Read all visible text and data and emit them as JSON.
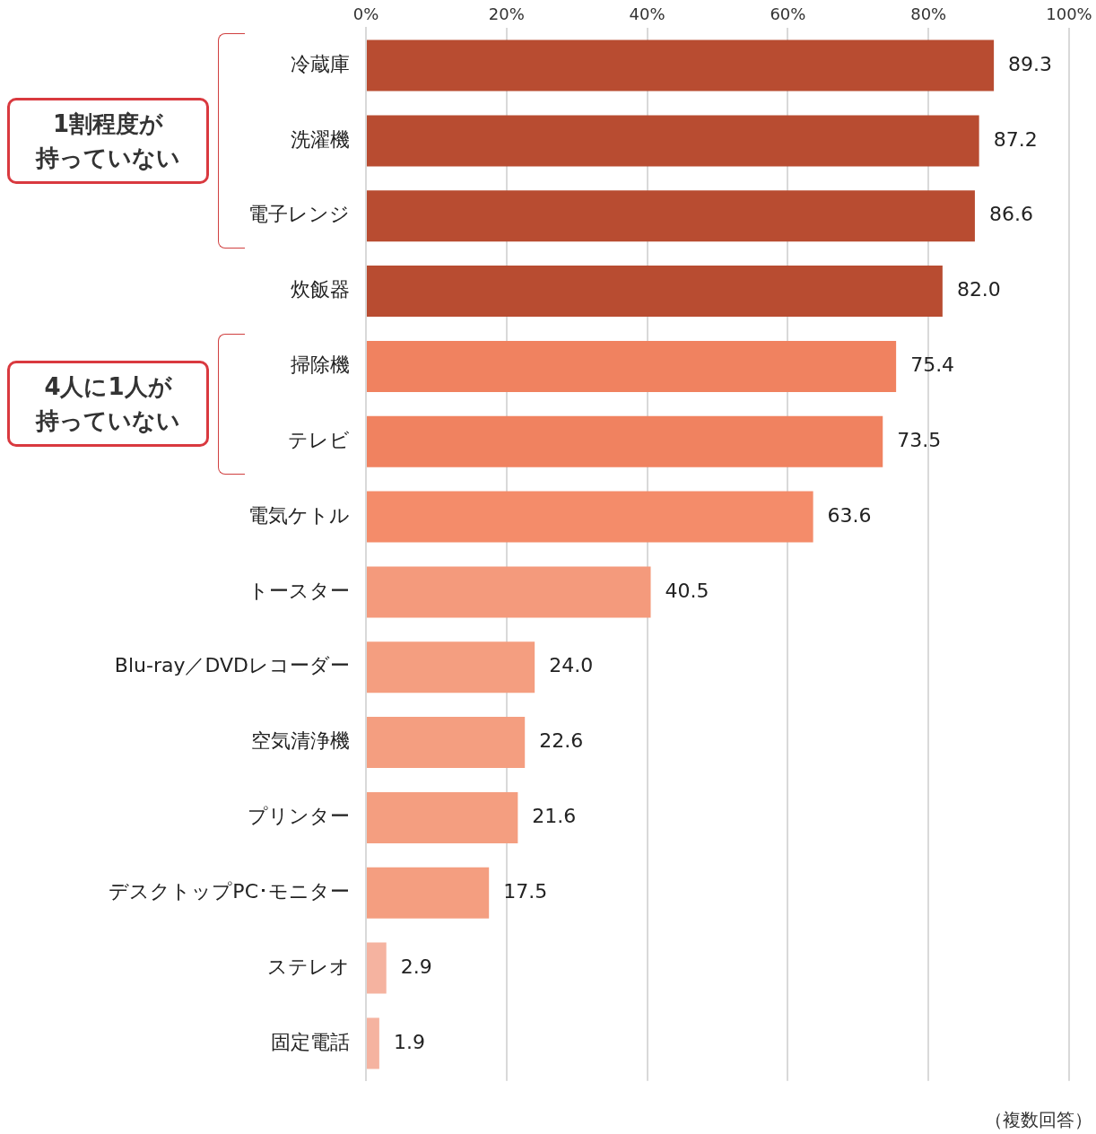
{
  "chart_data": {
    "type": "bar",
    "orientation": "horizontal",
    "categories": [
      "冷蔵庫",
      "洗濯機",
      "電子レンジ",
      "炊飯器",
      "掃除機",
      "テレビ",
      "電気ケトル",
      "トースター",
      "Blu-ray／DVDレコーダー",
      "空気清浄機",
      "プリンター",
      "デスクトップPC･モニター",
      "ステレオ",
      "固定電話"
    ],
    "values": [
      89.3,
      87.2,
      86.6,
      82.0,
      75.4,
      73.5,
      63.6,
      40.5,
      24.0,
      22.6,
      21.6,
      17.5,
      2.9,
      1.9
    ],
    "colors": [
      "#b84c31",
      "#b84c31",
      "#b84c31",
      "#b84c31",
      "#f08260",
      "#f08260",
      "#f48c6a",
      "#f49a7c",
      "#f49e80",
      "#f49e80",
      "#f49e80",
      "#f49e80",
      "#f5b3a0",
      "#f5b3a0"
    ],
    "xlim": [
      0,
      100
    ],
    "xticks": [
      {
        "value": 0,
        "label": "0%"
      },
      {
        "value": 20,
        "label": "20%"
      },
      {
        "value": 40,
        "label": "40%"
      },
      {
        "value": 60,
        "label": "60%"
      },
      {
        "value": 80,
        "label": "80%"
      },
      {
        "value": 100,
        "label": "100%"
      }
    ],
    "value_labels": [
      "89.3",
      "87.2",
      "86.6",
      "82.0",
      "75.4",
      "73.5",
      "63.6",
      "40.5",
      "24.0",
      "22.6",
      "21.6",
      "17.5",
      "2.9",
      "1.9"
    ],
    "grid": "x",
    "legend": false,
    "annotations": [
      "1割程度が持っていない",
      "4人に1人が持っていない",
      "（複数回答）"
    ]
  }
}
